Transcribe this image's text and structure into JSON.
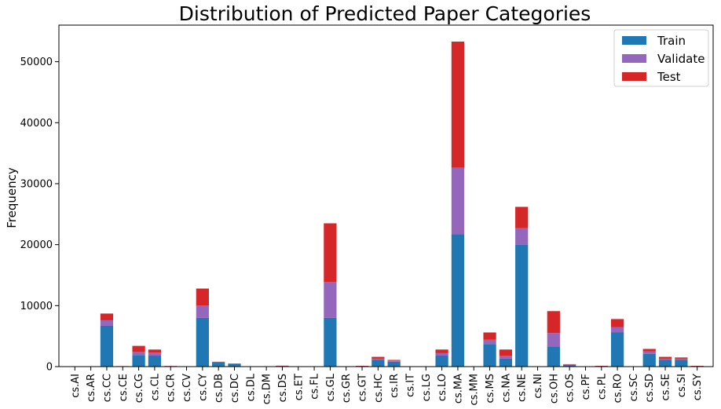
{
  "chart_data": {
    "type": "bar",
    "stacked": true,
    "title": "Distribution of Predicted Paper Categories",
    "xlabel": "",
    "ylabel": "Frequency",
    "ylim": [
      0,
      56000
    ],
    "yticks": [
      0,
      10000,
      20000,
      30000,
      40000,
      50000
    ],
    "grid": false,
    "legend_position": "top-right",
    "categories": [
      "cs.AI",
      "cs.AR",
      "cs.CC",
      "cs.CE",
      "cs.CG",
      "cs.CL",
      "cs.CR",
      "cs.CV",
      "cs.CY",
      "cs.DB",
      "cs.DC",
      "cs.DL",
      "cs.DM",
      "cs.DS",
      "cs.ET",
      "cs.FL",
      "cs.GL",
      "cs.GR",
      "cs.GT",
      "cs.HC",
      "cs.IR",
      "cs.IT",
      "cs.LG",
      "cs.LO",
      "cs.MA",
      "cs.MM",
      "cs.MS",
      "cs.NA",
      "cs.NE",
      "cs.NI",
      "cs.OH",
      "cs.OS",
      "cs.PF",
      "cs.PL",
      "cs.RO",
      "cs.SC",
      "cs.SD",
      "cs.SE",
      "cs.SI",
      "cs.SY"
    ],
    "series": [
      {
        "name": "Train",
        "color": "#1f77b4",
        "values": [
          10,
          10,
          6700,
          50,
          1900,
          1800,
          50,
          10,
          8000,
          700,
          400,
          10,
          10,
          100,
          10,
          10,
          8000,
          20,
          100,
          1100,
          800,
          10,
          10,
          1800,
          21700,
          10,
          3700,
          1300,
          20000,
          10,
          3300,
          300,
          10,
          100,
          5600,
          10,
          2100,
          1100,
          1100,
          100
        ]
      },
      {
        "name": "Validate",
        "color": "#9467bd",
        "values": [
          0,
          0,
          900,
          10,
          500,
          500,
          20,
          0,
          2000,
          50,
          50,
          0,
          0,
          20,
          0,
          0,
          5900,
          0,
          10,
          200,
          200,
          0,
          0,
          400,
          10900,
          0,
          700,
          500,
          2700,
          0,
          2200,
          50,
          0,
          10,
          900,
          0,
          400,
          200,
          200,
          10
        ]
      },
      {
        "name": "Test",
        "color": "#d62728",
        "values": [
          0,
          0,
          1100,
          20,
          1000,
          500,
          30,
          0,
          2800,
          50,
          50,
          0,
          0,
          30,
          0,
          0,
          9600,
          0,
          10,
          300,
          100,
          0,
          0,
          600,
          20700,
          0,
          1200,
          1000,
          3500,
          0,
          3600,
          50,
          0,
          10,
          1300,
          0,
          400,
          300,
          200,
          10
        ]
      }
    ]
  }
}
